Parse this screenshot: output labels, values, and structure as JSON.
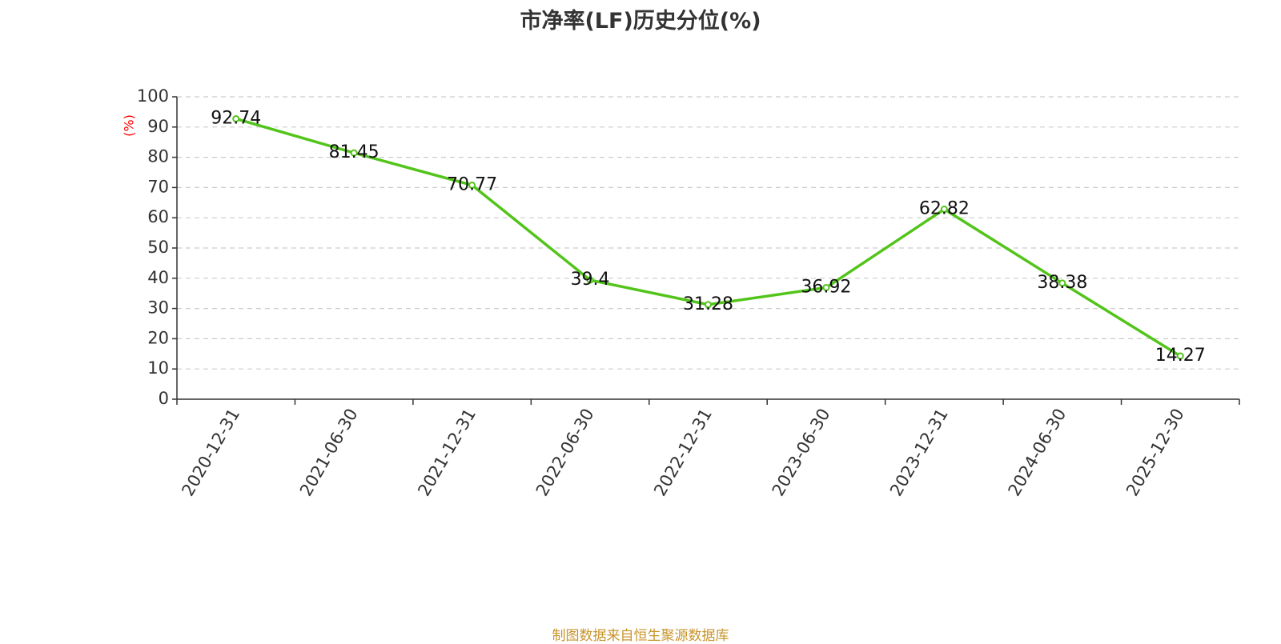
{
  "chart_data": {
    "type": "line",
    "title": "市净率(LF)历史分位(%)",
    "ylabel": "(%)",
    "xlabel": "",
    "ylim": [
      0,
      100
    ],
    "yticks": [
      0,
      10,
      20,
      30,
      40,
      50,
      60,
      70,
      80,
      90,
      100
    ],
    "grid": true,
    "categories": [
      "2020-12-31",
      "2021-06-30",
      "2021-12-31",
      "2022-06-30",
      "2022-12-31",
      "2023-06-30",
      "2023-12-31",
      "2024-06-30",
      "2025-12-30"
    ],
    "series": [
      {
        "values": [
          92.74,
          81.45,
          70.77,
          39.4,
          31.28,
          36.92,
          62.82,
          38.38,
          14.27
        ],
        "data_labels": [
          "92.74",
          "81.45",
          "70.77",
          "39.4",
          "31.28",
          "36.92",
          "62.82",
          "38.38",
          "14.27"
        ],
        "color": "#52c41a"
      }
    ],
    "source": "制图数据来自恒生聚源数据库"
  },
  "colors": {
    "line": "#52c41a",
    "axis": "#333333",
    "grid": "#cccccc",
    "ylabel": "#ff0000",
    "source": "#c8952c"
  }
}
